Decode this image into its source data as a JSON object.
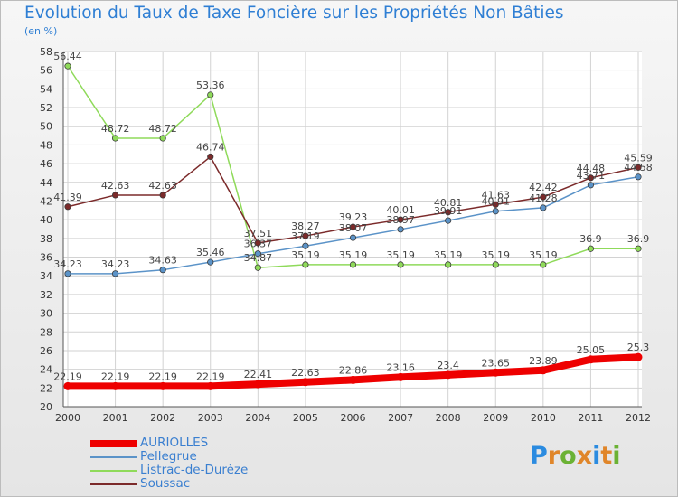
{
  "title": "Evolution du Taux de Taxe Foncière sur les Propriétés Non Bâties",
  "unit_label": "(en %)",
  "logo": {
    "letters": [
      "P",
      "r",
      "o",
      "x",
      "i",
      "t",
      "i"
    ],
    "colors": [
      "#2b8be0",
      "#e0862a",
      "#6bb234",
      "#e0862a",
      "#2b8be0",
      "#e0862a",
      "#6bb234"
    ]
  },
  "chart_data": {
    "type": "line",
    "title": "Evolution du Taux de Taxe Foncière sur les Propriétés Non Bâties",
    "ylabel": "(en %)",
    "xlabel": "",
    "x": [
      "2000",
      "2001",
      "2002",
      "2003",
      "2004",
      "2005",
      "2006",
      "2007",
      "2008",
      "2009",
      "2010",
      "2011",
      "2012"
    ],
    "ylim": [
      20,
      58
    ],
    "yticks": [
      20,
      22,
      24,
      26,
      28,
      30,
      32,
      34,
      36,
      38,
      40,
      42,
      44,
      46,
      48,
      50,
      52,
      54,
      56,
      58
    ],
    "grid": true,
    "legend_position": "bottom-left",
    "series": [
      {
        "name": "AURIOLLES",
        "color": "#ee0000",
        "values": [
          22.19,
          22.19,
          22.19,
          22.19,
          22.41,
          22.63,
          22.86,
          23.16,
          23.4,
          23.65,
          23.89,
          25.05,
          25.3
        ],
        "labels": [
          "22.19",
          "22.19",
          "22.19",
          "22.19",
          "22.41",
          "22.63",
          "22.86",
          "23.16",
          "23.4",
          "23.65",
          "23.89",
          "25.05",
          "25.3"
        ]
      },
      {
        "name": "Pellegrue",
        "color": "#5b93c8",
        "values": [
          34.23,
          34.23,
          34.63,
          35.46,
          36.37,
          37.19,
          38.07,
          38.97,
          39.91,
          40.91,
          41.28,
          43.71,
          44.58
        ],
        "labels": [
          "34.23",
          "34.23",
          "34.63",
          "35.46",
          "36.37",
          "37.19",
          "38.07",
          "38.97",
          "39.91",
          "40.91",
          "41.28",
          "43.71",
          "44.58"
        ]
      },
      {
        "name": "Listrac-de-Durèze",
        "color": "#8fda5a",
        "values": [
          56.44,
          48.72,
          48.72,
          53.36,
          34.87,
          35.19,
          35.19,
          35.19,
          35.19,
          35.19,
          35.19,
          36.9,
          36.9
        ],
        "labels": [
          "56.44",
          "48.72",
          "48.72",
          "53.36",
          "34.87",
          "35.19",
          "35.19",
          "35.19",
          "35.19",
          "35.19",
          "35.19",
          "36.9",
          "36.9"
        ]
      },
      {
        "name": "Soussac",
        "color": "#7b2a2a",
        "values": [
          41.39,
          42.63,
          42.63,
          46.74,
          37.51,
          38.27,
          39.23,
          40.01,
          40.81,
          41.63,
          42.42,
          44.48,
          45.59
        ],
        "labels": [
          "41.39",
          "42.63",
          "42.63",
          "46.74",
          "37.51",
          "38.27",
          "39.23",
          "40.01",
          "40.81",
          "41.63",
          "42.42",
          "44.48",
          "45.59"
        ]
      }
    ]
  }
}
